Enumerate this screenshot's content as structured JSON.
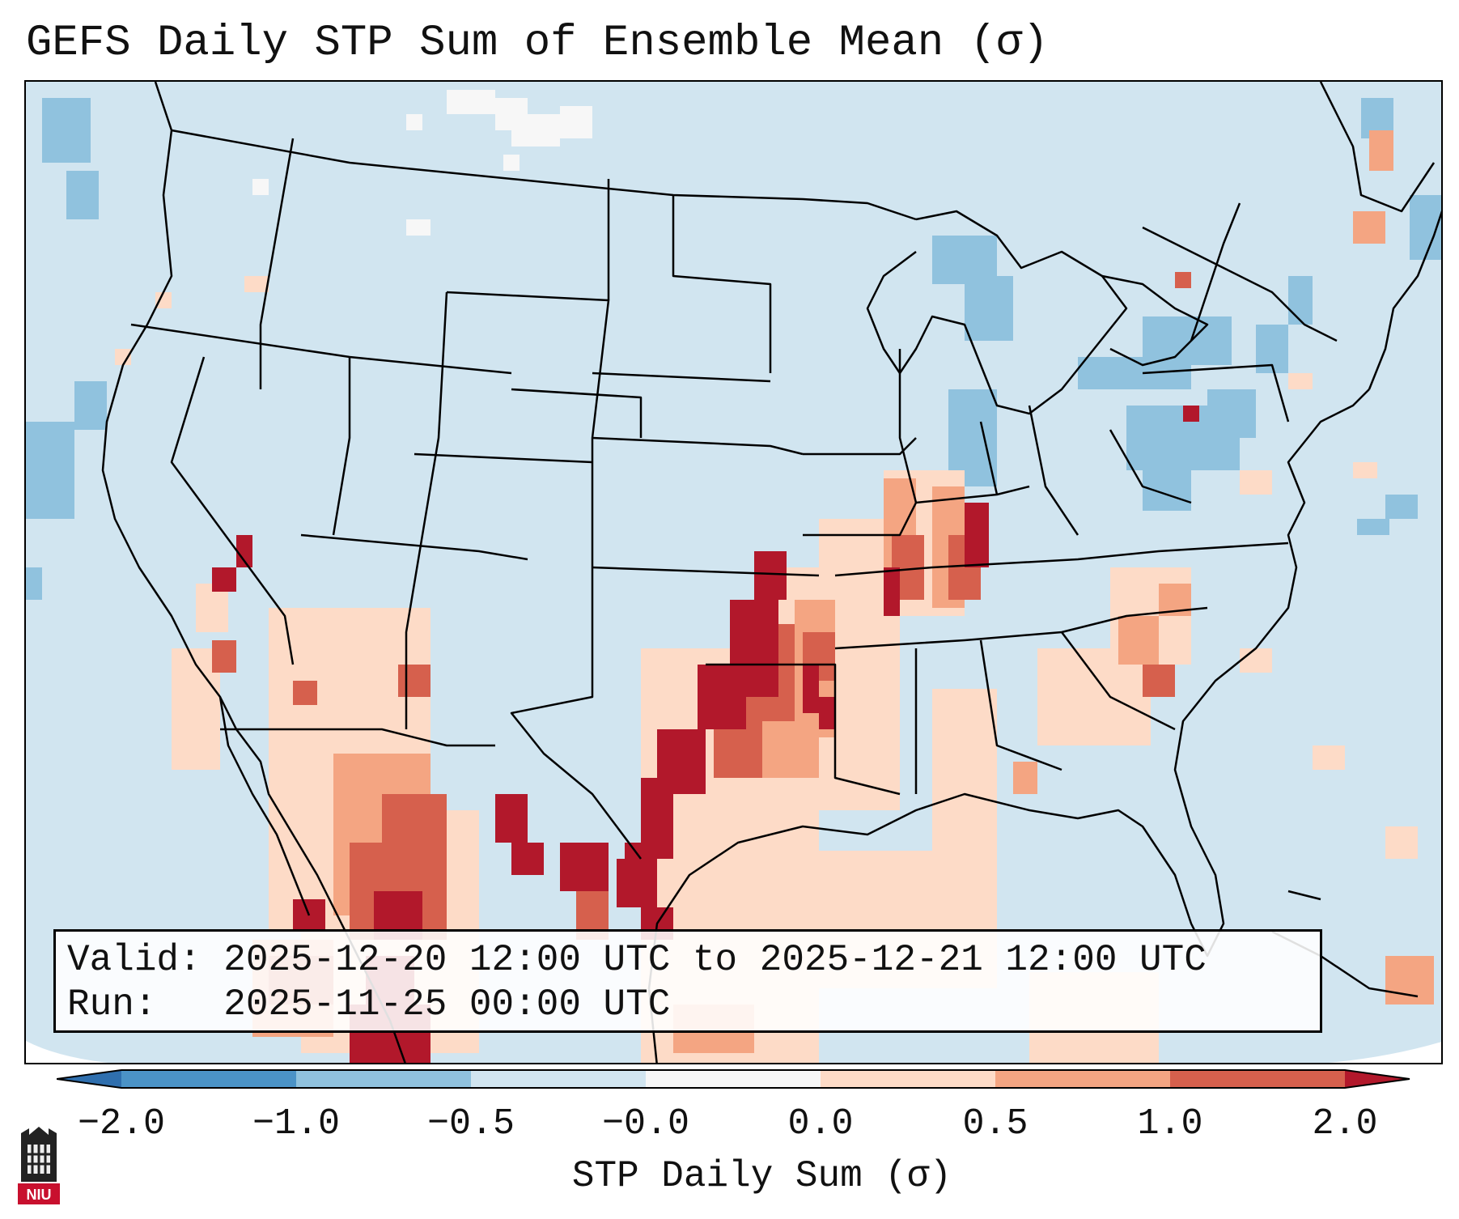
{
  "title": "GEFS Daily STP Sum of Ensemble Mean (σ)",
  "info": {
    "valid_label": "Valid:",
    "valid_value": "2025-12-20 12:00 UTC to 2025-12-21 12:00 UTC",
    "run_label": "Run:",
    "run_value": "2025-11-25 00:00 UTC"
  },
  "colorbar": {
    "label": "STP Daily Sum (σ)",
    "ticks": [
      "−2.0",
      "−1.0",
      "−0.5",
      "−0.0",
      "0.0",
      "0.5",
      "1.0",
      "2.0"
    ],
    "bins": [
      {
        "range": "< -2.0",
        "color": "#2f6fae"
      },
      {
        "range": "-2.0 to -1.0",
        "color": "#4b93c7"
      },
      {
        "range": "-1.0 to -0.5",
        "color": "#90c2de"
      },
      {
        "range": "-0.5 to -0.0",
        "color": "#d1e5f0"
      },
      {
        "range": "-0.0 to 0.0",
        "color": "#f7f7f7"
      },
      {
        "range": "0.0 to 0.5",
        "color": "#fddbc7"
      },
      {
        "range": "0.5 to 1.0",
        "color": "#f4a582"
      },
      {
        "range": "1.0 to 2.0",
        "color": "#d6604d"
      },
      {
        "range": "> 2.0",
        "color": "#b2182b"
      }
    ]
  },
  "map_colors": {
    "background": "#d1e5f0",
    "light_blue": "#90c2de",
    "white": "#f7f7f7",
    "light_red": "#fddbc7",
    "salmon": "#f4a582",
    "red": "#d6604d",
    "dark_red": "#b2182b"
  },
  "logo": {
    "text": "NIU",
    "color": "#c8102e"
  }
}
